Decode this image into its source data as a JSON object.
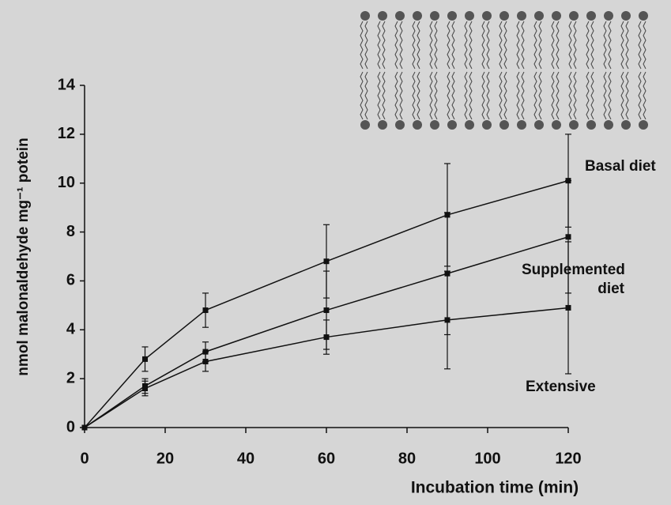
{
  "chart_data": {
    "type": "line",
    "y_label": "nmol malonaldehyde mg⁻¹ potein",
    "x_label": "Incubation time (min)",
    "x": [
      0,
      15,
      30,
      60,
      90,
      120
    ],
    "series": [
      {
        "name": "Basal diet",
        "color": "#111111",
        "values": [
          0,
          2.8,
          4.8,
          6.8,
          8.7,
          10.1
        ],
        "errors": [
          0,
          0.5,
          0.7,
          1.5,
          2.1,
          1.9
        ]
      },
      {
        "name": "Supplemented diet",
        "color": "#111111",
        "values": [
          0,
          1.7,
          3.1,
          4.8,
          6.3,
          7.8
        ],
        "errors": [
          0,
          0.3,
          0.4,
          1.6,
          2.5,
          2.3
        ]
      },
      {
        "name": "Extensive",
        "color": "#111111",
        "values": [
          0,
          1.6,
          2.7,
          3.7,
          4.4,
          4.9
        ],
        "errors": [
          0,
          0.3,
          0.4,
          0.7,
          2.0,
          2.7
        ]
      }
    ],
    "xlim": [
      0,
      120
    ],
    "xticks": [
      0,
      20,
      40,
      60,
      80,
      100,
      120
    ],
    "ylim": [
      0,
      14
    ],
    "yticks": [
      0,
      2,
      4,
      6,
      8,
      10,
      12,
      14
    ]
  }
}
